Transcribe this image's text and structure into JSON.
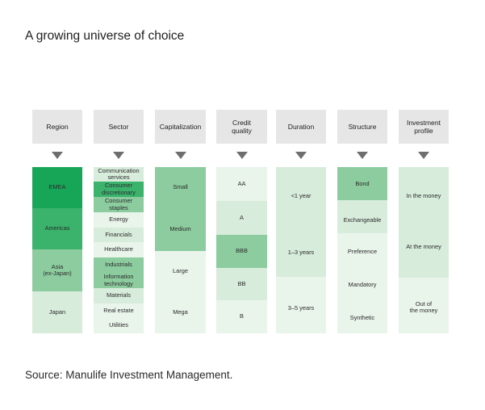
{
  "title": "A growing universe of choice",
  "source": "Source: Manulife Investment Management.",
  "colors": {
    "header_bg": "#e6e6e6",
    "arrow": "#6e6e6e",
    "green_dark": "#17a558",
    "green_mid": "#3bb36d",
    "green_light": "#8ccc9f",
    "green_pale": "#d7ecdb",
    "green_faint": "#e9f4eb"
  },
  "columns": [
    {
      "header": "Region",
      "items": [
        "EMEA",
        "Americas",
        "Asia\n(ex-Japan)",
        "Japan"
      ]
    },
    {
      "header": "Sector",
      "items": [
        "Communication\nservices",
        "Consumer\ndiscretionary",
        "Consumer\nstaples",
        "Energy",
        "Financials",
        "Healthcare",
        "Industrials",
        "Information\ntechnology",
        "Materials",
        "Real estate",
        "Utilities"
      ]
    },
    {
      "header": "Capitalization",
      "items": [
        "Small",
        "Medium",
        "Large",
        "Mega"
      ]
    },
    {
      "header": "Credit\nquality",
      "items": [
        "AA",
        "A",
        "BBB",
        "BB",
        "B"
      ]
    },
    {
      "header": "Duration",
      "items": [
        "<1 year",
        "1–3 years",
        "3–5 years"
      ]
    },
    {
      "header": "Structure",
      "items": [
        "Bond",
        "Exchangeable",
        "Preference",
        "Mandatory",
        "Synthetic"
      ]
    },
    {
      "header": "Investment\nprofile",
      "items": [
        "In the money",
        "At the money",
        "Out of\nthe money"
      ]
    }
  ]
}
